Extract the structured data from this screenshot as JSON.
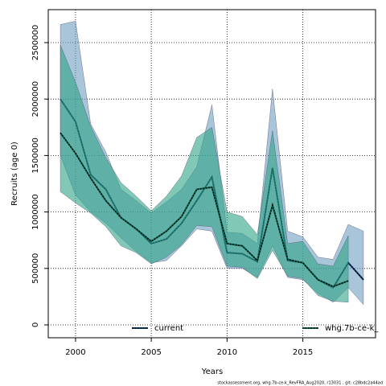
{
  "chart_data": {
    "type": "line",
    "xlabel": "Years",
    "ylabel": "Recruits (age 0)",
    "footer": "stockassessment.org, whg.7b-ce-k_RevFRA_Aug2020, r13031 , git: c28bdc2a44ad",
    "xlim": [
      1998.2,
      2019.8
    ],
    "ylim": [
      -114000,
      2792000
    ],
    "xticks": [
      2000,
      2005,
      2010,
      2015
    ],
    "yticks": [
      0,
      500000,
      1000000,
      1500000,
      2000000,
      2500000
    ],
    "grid": true,
    "legend": "bottom",
    "series": [
      {
        "name": "current",
        "color": "#0d3b66",
        "band_color": "#6e9fbf",
        "x": [
          1999,
          2000,
          2001,
          2002,
          2003,
          2004,
          2005,
          2006,
          2007,
          2008,
          2009,
          2010,
          2011,
          2012,
          2013,
          2014,
          2015,
          2016,
          2017,
          2018,
          2019
        ],
        "values": [
          2000000,
          1800000,
          1330000,
          1200000,
          950000,
          850000,
          720000,
          760000,
          900000,
          1100000,
          1310000,
          640000,
          630000,
          560000,
          1390000,
          570000,
          550000,
          400000,
          330000,
          550000,
          400000
        ],
        "upper": [
          2660000,
          2690000,
          1780000,
          1530000,
          1200000,
          1100000,
          990000,
          1090000,
          1200000,
          1400000,
          1950000,
          820000,
          810000,
          720000,
          2090000,
          830000,
          780000,
          600000,
          580000,
          890000,
          830000
        ],
        "lower": [
          1500000,
          1150000,
          1000000,
          900000,
          770000,
          650000,
          550000,
          570000,
          700000,
          850000,
          830000,
          500000,
          500000,
          420000,
          700000,
          420000,
          400000,
          280000,
          200000,
          330000,
          180000
        ]
      },
      {
        "name": "whg.7b-ce-k_",
        "color": "#0a5e4a",
        "band_color": "#2ea387",
        "x": [
          1999,
          2000,
          2001,
          2002,
          2003,
          2004,
          2005,
          2006,
          2007,
          2008,
          2009,
          2010,
          2011,
          2012,
          2013,
          2014,
          2015,
          2016,
          2017,
          2018
        ],
        "values": [
          1700000,
          1520000,
          1300000,
          1100000,
          950000,
          850000,
          740000,
          830000,
          960000,
          1200000,
          1220000,
          720000,
          700000,
          570000,
          1060000,
          580000,
          550000,
          400000,
          340000,
          390000
        ],
        "upper": [
          2480000,
          2150000,
          1760000,
          1480000,
          1260000,
          1140000,
          1010000,
          1140000,
          1320000,
          1660000,
          1750000,
          1000000,
          960000,
          800000,
          1720000,
          720000,
          740000,
          540000,
          520000,
          790000
        ],
        "lower": [
          1180000,
          1080000,
          990000,
          870000,
          700000,
          640000,
          540000,
          600000,
          710000,
          880000,
          870000,
          520000,
          510000,
          410000,
          660000,
          430000,
          410000,
          260000,
          210000,
          200000
        ]
      }
    ]
  }
}
